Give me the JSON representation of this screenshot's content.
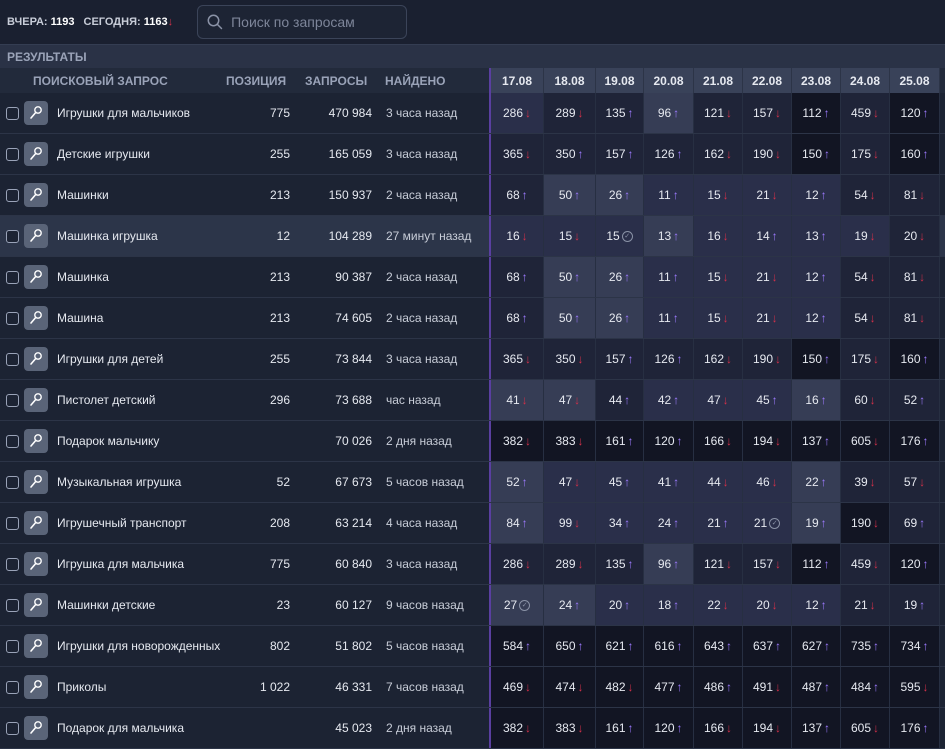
{
  "stats": {
    "yesterday_label": "ВЧЕРА:",
    "yesterday_value": "1193",
    "today_label": "СЕГОДНЯ:",
    "today_value": "1163",
    "today_trend": "↓"
  },
  "search": {
    "placeholder": "Поиск по запросам",
    "icon": "search-icon"
  },
  "results_label": "РЕЗУЛЬТАТЫ",
  "columns": {
    "query": "ПОИСКОВЫЙ ЗАПРОС",
    "position": "ПОЗИЦИЯ",
    "requests": "ЗАПРОСЫ",
    "found": "НАЙДЕНО",
    "dates": [
      "17.08",
      "18.08",
      "19.08",
      "20.08",
      "21.08",
      "22.08",
      "23.08",
      "24.08",
      "25.08"
    ]
  },
  "colors": {
    "up": "#9d7bff",
    "down": "#d0304a",
    "accent": "#5a3fa0"
  },
  "rows": [
    {
      "query": "Игрушки для мальчиков",
      "position": "775",
      "requests": "470 984",
      "found": "3 часа назад",
      "cells": [
        [
          "286",
          "down",
          2
        ],
        [
          "289",
          "down",
          1
        ],
        [
          "135",
          "up",
          1
        ],
        [
          "96",
          "up",
          3
        ],
        [
          "121",
          "down",
          1
        ],
        [
          "157",
          "down",
          1
        ],
        [
          "112",
          "up",
          0
        ],
        [
          "459",
          "down",
          1
        ],
        [
          "120",
          "up",
          0
        ]
      ]
    },
    {
      "query": "Детские игрушки",
      "position": "255",
      "requests": "165 059",
      "found": "3 часа назад",
      "cells": [
        [
          "365",
          "down",
          1
        ],
        [
          "350",
          "up",
          1
        ],
        [
          "157",
          "up",
          1
        ],
        [
          "126",
          "up",
          1
        ],
        [
          "162",
          "down",
          1
        ],
        [
          "190",
          "down",
          1
        ],
        [
          "150",
          "up",
          0
        ],
        [
          "175",
          "down",
          1
        ],
        [
          "160",
          "up",
          0
        ]
      ]
    },
    {
      "query": "Машинки",
      "position": "213",
      "requests": "150 937",
      "found": "2 часа назад",
      "cells": [
        [
          "68",
          "up",
          1
        ],
        [
          "50",
          "up",
          3
        ],
        [
          "26",
          "up",
          3
        ],
        [
          "11",
          "up",
          2
        ],
        [
          "15",
          "down",
          2
        ],
        [
          "21",
          "down",
          2
        ],
        [
          "12",
          "up",
          2
        ],
        [
          "54",
          "down",
          1
        ],
        [
          "81",
          "down",
          1
        ]
      ]
    },
    {
      "query": "Машинка игрушка",
      "position": "12",
      "requests": "104 289",
      "found": "27 минут назад",
      "hl": true,
      "cells": [
        [
          "16",
          "down",
          2
        ],
        [
          "15",
          "down",
          2
        ],
        [
          "15",
          "ok",
          2
        ],
        [
          "13",
          "up",
          3
        ],
        [
          "16",
          "down",
          2
        ],
        [
          "14",
          "up",
          2
        ],
        [
          "13",
          "up",
          2
        ],
        [
          "19",
          "down",
          2
        ],
        [
          "20",
          "down",
          1
        ]
      ]
    },
    {
      "query": "Машинка",
      "position": "213",
      "requests": "90 387",
      "found": "2 часа назад",
      "cells": [
        [
          "68",
          "up",
          1
        ],
        [
          "50",
          "up",
          3
        ],
        [
          "26",
          "up",
          3
        ],
        [
          "11",
          "up",
          2
        ],
        [
          "15",
          "down",
          2
        ],
        [
          "21",
          "down",
          2
        ],
        [
          "12",
          "up",
          2
        ],
        [
          "54",
          "down",
          1
        ],
        [
          "81",
          "down",
          1
        ]
      ]
    },
    {
      "query": "Машина",
      "position": "213",
      "requests": "74 605",
      "found": "2 часа назад",
      "cells": [
        [
          "68",
          "up",
          1
        ],
        [
          "50",
          "up",
          3
        ],
        [
          "26",
          "up",
          3
        ],
        [
          "11",
          "up",
          2
        ],
        [
          "15",
          "down",
          2
        ],
        [
          "21",
          "down",
          2
        ],
        [
          "12",
          "up",
          2
        ],
        [
          "54",
          "down",
          1
        ],
        [
          "81",
          "down",
          1
        ]
      ]
    },
    {
      "query": "Игрушки для детей",
      "position": "255",
      "requests": "73 844",
      "found": "3 часа назад",
      "cells": [
        [
          "365",
          "down",
          1
        ],
        [
          "350",
          "down",
          1
        ],
        [
          "157",
          "up",
          1
        ],
        [
          "126",
          "up",
          1
        ],
        [
          "162",
          "down",
          1
        ],
        [
          "190",
          "down",
          1
        ],
        [
          "150",
          "up",
          0
        ],
        [
          "175",
          "down",
          1
        ],
        [
          "160",
          "up",
          0
        ]
      ]
    },
    {
      "query": "Пистолет детский",
      "position": "296",
      "requests": "73 688",
      "found": "час назад",
      "cells": [
        [
          "41",
          "down",
          3
        ],
        [
          "47",
          "down",
          3
        ],
        [
          "44",
          "up",
          1
        ],
        [
          "42",
          "up",
          2
        ],
        [
          "47",
          "down",
          2
        ],
        [
          "45",
          "up",
          2
        ],
        [
          "16",
          "up",
          3
        ],
        [
          "60",
          "down",
          1
        ],
        [
          "52",
          "up",
          1
        ]
      ]
    },
    {
      "query": "Подарок мальчику",
      "position": "",
      "requests": "70 026",
      "found": "2 дня назад",
      "cells": [
        [
          "382",
          "down",
          0
        ],
        [
          "383",
          "down",
          0
        ],
        [
          "161",
          "up",
          0
        ],
        [
          "120",
          "up",
          0
        ],
        [
          "166",
          "down",
          0
        ],
        [
          "194",
          "down",
          0
        ],
        [
          "137",
          "up",
          0
        ],
        [
          "605",
          "down",
          0
        ],
        [
          "176",
          "up",
          0
        ]
      ]
    },
    {
      "query": "Музыкальная игрушка",
      "position": "52",
      "requests": "67 673",
      "found": "5 часов назад",
      "cells": [
        [
          "52",
          "up",
          3
        ],
        [
          "47",
          "down",
          2
        ],
        [
          "45",
          "up",
          2
        ],
        [
          "41",
          "up",
          2
        ],
        [
          "44",
          "down",
          2
        ],
        [
          "46",
          "down",
          2
        ],
        [
          "22",
          "up",
          3
        ],
        [
          "39",
          "down",
          1
        ],
        [
          "57",
          "down",
          1
        ]
      ]
    },
    {
      "query": "Игрушечный транспорт",
      "position": "208",
      "requests": "63 214",
      "found": "4 часа назад",
      "cells": [
        [
          "84",
          "up",
          3
        ],
        [
          "99",
          "down",
          2
        ],
        [
          "34",
          "up",
          2
        ],
        [
          "24",
          "up",
          2
        ],
        [
          "21",
          "up",
          2
        ],
        [
          "21",
          "ok",
          2
        ],
        [
          "19",
          "up",
          3
        ],
        [
          "190",
          "down",
          0
        ],
        [
          "69",
          "up",
          1
        ]
      ]
    },
    {
      "query": "Игрушка для мальчика",
      "position": "775",
      "requests": "60 840",
      "found": "3 часа назад",
      "cells": [
        [
          "286",
          "down",
          1
        ],
        [
          "289",
          "down",
          1
        ],
        [
          "135",
          "up",
          1
        ],
        [
          "96",
          "up",
          3
        ],
        [
          "121",
          "down",
          1
        ],
        [
          "157",
          "down",
          1
        ],
        [
          "112",
          "up",
          0
        ],
        [
          "459",
          "down",
          1
        ],
        [
          "120",
          "up",
          0
        ]
      ]
    },
    {
      "query": "Машинки детские",
      "position": "23",
      "requests": "60 127",
      "found": "9 часов назад",
      "cells": [
        [
          "27",
          "ok",
          3
        ],
        [
          "24",
          "up",
          3
        ],
        [
          "20",
          "up",
          2
        ],
        [
          "18",
          "up",
          2
        ],
        [
          "22",
          "down",
          2
        ],
        [
          "20",
          "down",
          2
        ],
        [
          "12",
          "up",
          2
        ],
        [
          "21",
          "down",
          1
        ],
        [
          "19",
          "up",
          1
        ]
      ]
    },
    {
      "query": "Игрушки для новорожденных",
      "position": "802",
      "requests": "51 802",
      "found": "5 часов назад",
      "cells": [
        [
          "584",
          "up",
          0
        ],
        [
          "650",
          "up",
          0
        ],
        [
          "621",
          "up",
          0
        ],
        [
          "616",
          "up",
          0
        ],
        [
          "643",
          "up",
          0
        ],
        [
          "637",
          "up",
          0
        ],
        [
          "627",
          "up",
          0
        ],
        [
          "735",
          "up",
          0
        ],
        [
          "734",
          "up",
          0
        ]
      ]
    },
    {
      "query": "Приколы",
      "position": "1 022",
      "requests": "46 331",
      "found": "7 часов назад",
      "cells": [
        [
          "469",
          "down",
          0
        ],
        [
          "474",
          "down",
          0
        ],
        [
          "482",
          "down",
          0
        ],
        [
          "477",
          "up",
          0
        ],
        [
          "486",
          "up",
          0
        ],
        [
          "491",
          "down",
          0
        ],
        [
          "487",
          "up",
          0
        ],
        [
          "484",
          "up",
          0
        ],
        [
          "595",
          "down",
          0
        ]
      ]
    },
    {
      "query": "Подарок для мальчика",
      "position": "",
      "requests": "45 023",
      "found": "2 дня назад",
      "cells": [
        [
          "382",
          "down",
          0
        ],
        [
          "383",
          "down",
          0
        ],
        [
          "161",
          "up",
          0
        ],
        [
          "120",
          "up",
          0
        ],
        [
          "166",
          "down",
          0
        ],
        [
          "194",
          "down",
          0
        ],
        [
          "137",
          "up",
          0
        ],
        [
          "605",
          "down",
          0
        ],
        [
          "176",
          "up",
          0
        ]
      ]
    }
  ]
}
